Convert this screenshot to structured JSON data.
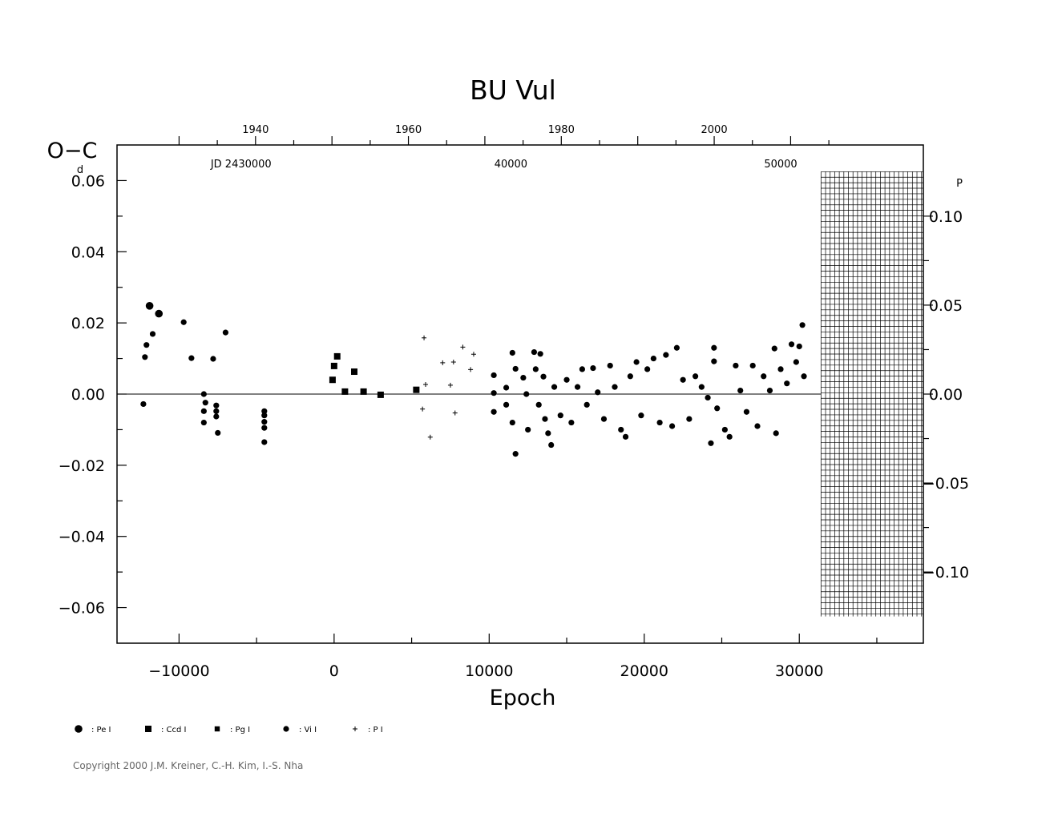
{
  "chart_data": {
    "type": "scatter",
    "title": "BU  Vul",
    "xlabel": "Epoch",
    "ylabel": "O−C",
    "ylabel_unit": "d",
    "right_unit": "P",
    "xlim": [
      -14000,
      38000
    ],
    "ylim": [
      -0.07,
      0.07
    ],
    "x_ticks": [
      -10000,
      0,
      10000,
      20000,
      30000
    ],
    "x_tick_labels": [
      "−10000",
      "0",
      "10000",
      "20000",
      "30000"
    ],
    "y_ticks": [
      0.06,
      0.04,
      0.02,
      0.0,
      -0.02,
      -0.04,
      -0.06
    ],
    "y_tick_labels": [
      "0.06",
      "0.04",
      "0.02",
      "0.00",
      "−0.02",
      "−0.04",
      "−0.06"
    ],
    "y2_ticks": [
      0.1,
      0.05,
      0.0,
      -0.05,
      -0.1
    ],
    "y2_tick_labels": [
      "0.10",
      "0.05",
      "0.00",
      "−0.05",
      "−0.10"
    ],
    "period_ratio": 0.5,
    "top_year_ticks": [
      1940,
      1960,
      1980,
      2000
    ],
    "top_year_labels": [
      "1940",
      "1960",
      "1980",
      "2000"
    ],
    "jd_labels": [
      {
        "text": "JD  2430000",
        "epoch": -6000
      },
      {
        "text": "40000",
        "epoch": 11400
      },
      {
        "text": "50000",
        "epoch": 28800
      }
    ],
    "hatched_x_range": [
      31400,
      38000
    ],
    "hatched_y_range": [
      -0.0625,
      0.0625
    ],
    "zero_line_end_epoch": 31400,
    "legend": [
      {
        "symbol": "pe",
        "label": ": Pe  I"
      },
      {
        "symbol": "ccd",
        "label": ": Ccd  I"
      },
      {
        "symbol": "pg",
        "label": ": Pg  I"
      },
      {
        "symbol": "vi",
        "label": ": Vi  I"
      },
      {
        "symbol": "p",
        "label": ": P  I"
      }
    ],
    "series": [
      {
        "symbol": "pe",
        "points": [
          [
            -11900,
            0.0248
          ],
          [
            -11300,
            0.0226
          ]
        ]
      },
      {
        "symbol": "ccd",
        "points": [
          [
            200,
            0.0106
          ],
          [
            0,
            0.0079
          ],
          [
            -100,
            0.004
          ],
          [
            700,
            0.0007
          ],
          [
            1300,
            0.0063
          ],
          [
            1900,
            0.0007
          ],
          [
            3000,
            -0.0002
          ],
          [
            5300,
            0.0012
          ]
        ]
      },
      {
        "symbol": "vi",
        "points": [
          [
            -12300,
            -0.0028
          ],
          [
            -12200,
            0.0104
          ],
          [
            -12100,
            0.0138
          ],
          [
            -11700,
            0.0169
          ],
          [
            -9700,
            0.0202
          ],
          [
            -9200,
            0.0101
          ],
          [
            -8400,
            0.0
          ],
          [
            -8300,
            -0.0024
          ],
          [
            -8400,
            -0.0048
          ],
          [
            -8400,
            -0.008
          ],
          [
            -7800,
            0.0099
          ],
          [
            -7600,
            -0.0032
          ],
          [
            -7600,
            -0.0048
          ],
          [
            -7600,
            -0.0063
          ],
          [
            -7500,
            -0.0109
          ],
          [
            -7000,
            0.0173
          ],
          [
            -4500,
            -0.0048
          ],
          [
            -4500,
            -0.006
          ],
          [
            -4500,
            -0.0078
          ],
          [
            -4500,
            -0.0095
          ],
          [
            -4500,
            -0.0135
          ],
          [
            10300,
            0.0053
          ],
          [
            10300,
            0.0003
          ],
          [
            10300,
            -0.005
          ],
          [
            11100,
            0.0018
          ],
          [
            11100,
            -0.003
          ],
          [
            11500,
            0.0116
          ],
          [
            11700,
            0.0071
          ],
          [
            11500,
            -0.008
          ],
          [
            11700,
            -0.0168
          ],
          [
            12200,
            0.0046
          ],
          [
            12400,
            0.0
          ],
          [
            12500,
            -0.01
          ],
          [
            12900,
            0.0118
          ],
          [
            13000,
            0.007
          ],
          [
            13200,
            -0.003
          ],
          [
            13300,
            0.0113
          ],
          [
            13500,
            0.0049
          ],
          [
            13600,
            -0.007
          ],
          [
            13800,
            -0.011
          ],
          [
            14000,
            -0.0143
          ],
          [
            14200,
            0.002
          ],
          [
            14600,
            -0.006
          ],
          [
            15000,
            0.004
          ],
          [
            15300,
            -0.008
          ],
          [
            15700,
            0.002
          ],
          [
            16000,
            0.007
          ],
          [
            16300,
            -0.003
          ],
          [
            16700,
            0.0073
          ],
          [
            17000,
            0.0005
          ],
          [
            17400,
            -0.007
          ],
          [
            17800,
            0.008
          ],
          [
            18100,
            0.002
          ],
          [
            18500,
            -0.01
          ],
          [
            18800,
            -0.012
          ],
          [
            19100,
            0.005
          ],
          [
            19500,
            0.009
          ],
          [
            19800,
            -0.006
          ],
          [
            20200,
            0.007
          ],
          [
            20600,
            0.01
          ],
          [
            21000,
            -0.008
          ],
          [
            21400,
            0.011
          ],
          [
            21800,
            -0.009
          ],
          [
            22100,
            0.013
          ],
          [
            22500,
            0.004
          ],
          [
            22900,
            -0.007
          ],
          [
            23300,
            0.005
          ],
          [
            23700,
            0.002
          ],
          [
            24100,
            -0.001
          ],
          [
            24500,
            0.013
          ],
          [
            24500,
            0.0092
          ],
          [
            24300,
            -0.0138
          ],
          [
            24700,
            -0.004
          ],
          [
            25200,
            -0.01
          ],
          [
            25500,
            -0.012
          ],
          [
            25900,
            0.008
          ],
          [
            26200,
            0.001
          ],
          [
            26600,
            -0.005
          ],
          [
            27000,
            0.008
          ],
          [
            27300,
            -0.009
          ],
          [
            27700,
            0.005
          ],
          [
            28100,
            0.001
          ],
          [
            28400,
            0.0128
          ],
          [
            28500,
            -0.011
          ],
          [
            28800,
            0.007
          ],
          [
            29200,
            0.003
          ],
          [
            29500,
            0.014
          ],
          [
            29800,
            0.009
          ],
          [
            30000,
            0.0134
          ],
          [
            30200,
            0.0194
          ],
          [
            30300,
            0.005
          ]
        ]
      },
      {
        "symbol": "p",
        "points": [
          [
            5800,
            0.0158
          ],
          [
            5900,
            0.0027
          ],
          [
            5700,
            -0.0042
          ],
          [
            6200,
            -0.0121
          ],
          [
            7000,
            0.0088
          ],
          [
            7500,
            0.0025
          ],
          [
            7700,
            0.009
          ],
          [
            7800,
            -0.0053
          ],
          [
            8300,
            0.0132
          ],
          [
            8800,
            0.0069
          ],
          [
            9000,
            0.0112
          ]
        ]
      }
    ]
  },
  "copyright": "Copyright 2000 J.M. Kreiner, C.-H. Kim, I.-S. Nha"
}
